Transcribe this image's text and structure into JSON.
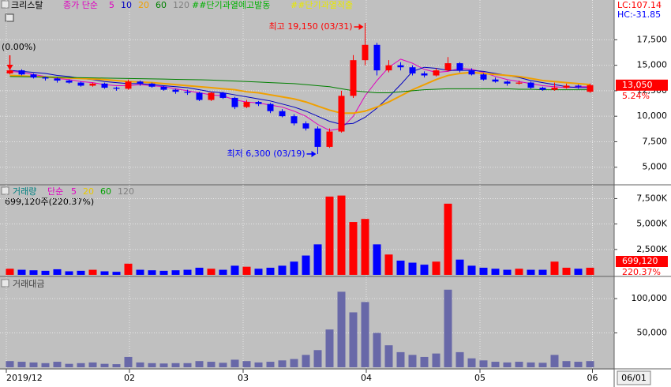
{
  "chart_data": [
    {
      "type": "candlestick",
      "title": "크리스탈",
      "ma_label": "종가 단순",
      "alerts": [
        {
          "text": "##단기과열예고발동",
          "color": "#00b000"
        },
        {
          "text": "##단기과열적출",
          "color": "#e8e800"
        }
      ],
      "open": [
        14200,
        14500,
        14100,
        13800,
        13700,
        13500,
        13300,
        13000,
        13200,
        12800,
        12700,
        13400,
        13200,
        12900,
        12600,
        12400,
        12300,
        11600,
        12300,
        11800,
        10900,
        11400,
        11200,
        10500,
        10000,
        9300,
        8800,
        7000,
        8500,
        12000,
        15500,
        17000,
        14500,
        15000,
        14800,
        14200,
        14000,
        14500,
        15200,
        14500,
        14100,
        13600,
        13400,
        13200,
        13300,
        12800,
        12600,
        12800,
        13000,
        12400
      ],
      "high": [
        14700,
        14600,
        14200,
        13900,
        13800,
        13600,
        13400,
        13300,
        13300,
        12900,
        13600,
        13500,
        13300,
        13000,
        12700,
        12600,
        12400,
        12400,
        12400,
        11900,
        11600,
        11500,
        11300,
        10700,
        10200,
        9500,
        9000,
        8800,
        12500,
        16000,
        19150,
        17200,
        15500,
        15300,
        15000,
        14400,
        14700,
        15800,
        15300,
        14700,
        14200,
        13800,
        13500,
        13500,
        13400,
        12900,
        13300,
        13200,
        13100,
        13200
      ],
      "low": [
        14100,
        14000,
        13700,
        13500,
        13300,
        13200,
        12900,
        12900,
        12700,
        12500,
        12600,
        13000,
        12800,
        12500,
        12200,
        12100,
        11500,
        11500,
        11700,
        10700,
        10800,
        11000,
        10300,
        9900,
        9100,
        8600,
        6300,
        6900,
        8400,
        11800,
        15000,
        14000,
        14300,
        14500,
        14000,
        13800,
        13900,
        14400,
        14300,
        14000,
        13500,
        13300,
        13000,
        13100,
        12700,
        12500,
        12500,
        12700,
        12700,
        12300
      ],
      "close": [
        14500,
        14100,
        13800,
        13700,
        13500,
        13300,
        13000,
        13200,
        12800,
        12700,
        13400,
        13200,
        12900,
        12600,
        12400,
        12300,
        11600,
        12300,
        11800,
        10900,
        11400,
        11200,
        10500,
        10000,
        9300,
        8800,
        7000,
        8500,
        12000,
        15500,
        17000,
        14500,
        15000,
        14800,
        14200,
        14000,
        14500,
        15200,
        14500,
        14100,
        13600,
        13400,
        13200,
        13300,
        12800,
        12600,
        12800,
        13000,
        12900,
        13050
      ],
      "up_color": "#ff0000",
      "down_color": "#0000ff",
      "series": [
        {
          "name": "5",
          "color": "#e000c0",
          "values": [
            14400,
            14300,
            14100,
            13900,
            13700,
            13600,
            13400,
            13300,
            13100,
            13000,
            13000,
            13100,
            13000,
            12900,
            12700,
            12500,
            12300,
            12100,
            12000,
            11600,
            11400,
            11300,
            11100,
            10900,
            10500,
            10000,
            9200,
            8600,
            8800,
            10000,
            12000,
            13500,
            14800,
            15600,
            15200,
            14600,
            14300,
            14400,
            14700,
            14600,
            14300,
            13900,
            13600,
            13400,
            13200,
            13000,
            12900,
            12800,
            12900,
            12900
          ]
        },
        {
          "name": "10",
          "color": "#0000c0",
          "values": [
            14500,
            14400,
            14300,
            14200,
            14000,
            13900,
            13700,
            13600,
            13400,
            13300,
            13200,
            13200,
            13100,
            13000,
            12900,
            12800,
            12600,
            12400,
            12300,
            12100,
            11900,
            11700,
            11500,
            11200,
            10900,
            10500,
            10000,
            9500,
            9200,
            9300,
            9900,
            10800,
            11900,
            13100,
            14400,
            14800,
            14700,
            14500,
            14500,
            14500,
            14400,
            14200,
            14000,
            13800,
            13500,
            13300,
            13100,
            12900,
            12800,
            12800
          ]
        },
        {
          "name": "20",
          "color": "#f0a000",
          "values": [
            14000,
            13950,
            13900,
            13850,
            13800,
            13750,
            13700,
            13650,
            13600,
            13500,
            13400,
            13350,
            13300,
            13200,
            13100,
            13000,
            12900,
            12800,
            12700,
            12600,
            12400,
            12300,
            12100,
            11900,
            11700,
            11400,
            11000,
            10600,
            10300,
            10300,
            10500,
            10900,
            11400,
            12000,
            12600,
            13100,
            13600,
            14000,
            14200,
            14300,
            14200,
            14100,
            14000,
            13900,
            13700,
            13500,
            13400,
            13300,
            13200,
            13100
          ]
        },
        {
          "name": "60",
          "color": "#008000",
          "values": [
            13900,
            13880,
            13860,
            13840,
            13820,
            13800,
            13780,
            13760,
            13740,
            13720,
            13700,
            13680,
            13660,
            13640,
            13620,
            13600,
            13580,
            13550,
            13500,
            13450,
            13400,
            13350,
            13300,
            13250,
            13200,
            13100,
            13000,
            12900,
            12700,
            12500,
            12400,
            12300,
            12300,
            12400,
            12500,
            12600,
            12650,
            12700,
            12700,
            12700,
            12700,
            12700,
            12700,
            12650,
            12650,
            12600,
            12600,
            12600,
            12600,
            12600
          ]
        },
        {
          "name": "120",
          "color": "#808080",
          "values": [
            null,
            null,
            null,
            null,
            null,
            null,
            null,
            null,
            null,
            null,
            null,
            null,
            null,
            null,
            null,
            null,
            null,
            null,
            null,
            null,
            null,
            null,
            null,
            null,
            null,
            null,
            null,
            null,
            null,
            null,
            null,
            null,
            null,
            null,
            null,
            null,
            null,
            null,
            null,
            null,
            null,
            null,
            null,
            null,
            null,
            null,
            null,
            null,
            null,
            null
          ]
        }
      ],
      "ylim": [
        3430,
        21400
      ],
      "yticks": [
        {
          "value": 5000,
          "label": "5,000"
        },
        {
          "value": 7500,
          "label": "7,500"
        },
        {
          "value": 10000,
          "label": "10,000"
        },
        {
          "value": 12500,
          "label": "12,500"
        },
        {
          "value": 15000,
          "label": "15,000"
        },
        {
          "value": 17500,
          "label": "17,500"
        }
      ],
      "current": {
        "value": 13050,
        "label": "13,050"
      },
      "change": "5.24%",
      "lc": "LC:107.14",
      "hc": "HC:-31.85",
      "annotations": [
        {
          "text": "(0.00%)",
          "x": 0,
          "color": "#000000"
        },
        {
          "text": "최고 19,150 (03/31)",
          "x": 30,
          "value": 19150,
          "color": "#ff0000"
        },
        {
          "text": "최저 6,300 (03/19)",
          "x": 26,
          "value": 6300,
          "color": "#0000ff"
        }
      ]
    },
    {
      "type": "bar",
      "title": "거래량",
      "ma_label": "단순",
      "ma_legend": [
        {
          "name": "5",
          "color": "#e000c0"
        },
        {
          "name": "20",
          "color": "#e8c800"
        },
        {
          "name": "60",
          "color": "#00a000"
        },
        {
          "name": "120",
          "color": "#808080"
        }
      ],
      "values": [
        600,
        500,
        450,
        400,
        550,
        350,
        400,
        500,
        350,
        300,
        1100,
        500,
        450,
        400,
        450,
        500,
        700,
        600,
        500,
        900,
        800,
        600,
        700,
        900,
        1300,
        1900,
        3000,
        7700,
        7800,
        5200,
        5500,
        3000,
        2000,
        1400,
        1200,
        1000,
        1300,
        7000,
        1500,
        900,
        700,
        600,
        500,
        600,
        500,
        500,
        1300,
        700,
        600,
        699.12
      ],
      "ylim": [
        0,
        8700
      ],
      "yticks": [
        {
          "value": 2500,
          "label": "2,500K"
        },
        {
          "value": 5000,
          "label": "5,000K"
        },
        {
          "value": 7500,
          "label": "7,500K"
        }
      ],
      "summary": "699,120주(220.37%)",
      "current": {
        "value": 699.12,
        "label": "699,120"
      },
      "change": "220.37%"
    },
    {
      "type": "bar",
      "title": "거래대금",
      "color": "#6868a8",
      "values": [
        9000,
        8000,
        7000,
        6000,
        8000,
        5000,
        6000,
        7000,
        5000,
        4500,
        15000,
        7000,
        6000,
        5500,
        6000,
        6000,
        9000,
        8000,
        6500,
        11000,
        9000,
        7000,
        8000,
        10000,
        12000,
        18000,
        25000,
        55000,
        110000,
        80000,
        95000,
        50000,
        32000,
        22000,
        18000,
        15000,
        20000,
        113000,
        22000,
        13000,
        10000,
        8000,
        7000,
        8000,
        7000,
        6500,
        18000,
        9000,
        8000,
        9000
      ],
      "ylim": [
        0,
        130000
      ],
      "yticks": [
        {
          "value": 50000,
          "label": "50,000"
        },
        {
          "value": 100000,
          "label": "100,000"
        }
      ]
    }
  ],
  "x_axis": {
    "ticks": [
      {
        "value": -0.3,
        "label": "2019/12"
      },
      {
        "value": 10.1,
        "label": "02"
      },
      {
        "value": 19.7,
        "label": "03"
      },
      {
        "value": 30.1,
        "label": "04"
      },
      {
        "value": 39.7,
        "label": "05"
      },
      {
        "value": 49.2,
        "label": "06"
      }
    ],
    "cursor_label": "06/01"
  }
}
